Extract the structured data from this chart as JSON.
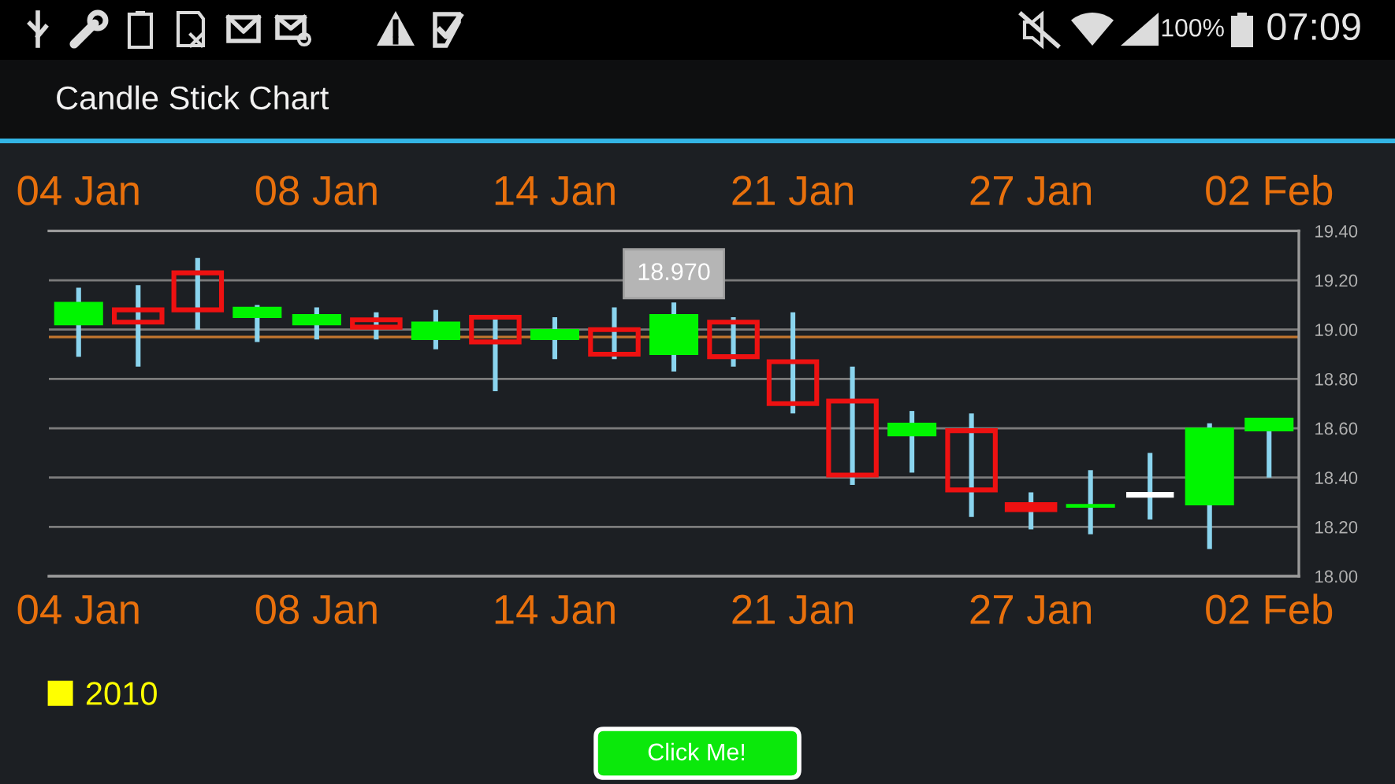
{
  "chart_data": {
    "type": "candlestick",
    "title": "Candle Stick Chart",
    "categories": [
      "04 Jan",
      null,
      null,
      null,
      "08 Jan",
      null,
      null,
      null,
      "14 Jan",
      null,
      null,
      null,
      "21 Jan",
      null,
      null,
      null,
      "27 Jan",
      null,
      null,
      null,
      "02 Feb"
    ],
    "series": [
      {
        "name": "2010",
        "color": "#ffff00",
        "colors": [
          "#00f500",
          "#ee1111",
          "#ee1111",
          "#00f500",
          "#00f500",
          "#ee1111",
          "#00f500",
          "#ee1111",
          "#00f500",
          "#ee1111",
          "#00f500",
          "#ee1111",
          "#ee1111",
          "#ee1111",
          "#00f500",
          "#ee1111",
          "#ee1111",
          "#00f500",
          "#ffffff",
          "#00f500",
          "#00f500"
        ],
        "ohlc": [
          [
            19.02,
            19.17,
            18.89,
            19.11
          ],
          [
            19.08,
            19.18,
            18.85,
            19.03
          ],
          [
            19.23,
            19.29,
            19.0,
            19.08
          ],
          [
            19.05,
            19.1,
            18.95,
            19.09
          ],
          [
            19.02,
            19.09,
            18.96,
            19.06
          ],
          [
            19.04,
            19.07,
            18.96,
            19.01
          ],
          [
            18.96,
            19.08,
            18.92,
            19.03
          ],
          [
            19.05,
            19.05,
            18.75,
            18.95
          ],
          [
            18.96,
            19.05,
            18.88,
            19.0
          ],
          [
            19.0,
            19.09,
            18.88,
            18.9
          ],
          [
            18.9,
            19.11,
            18.83,
            19.06
          ],
          [
            19.03,
            19.05,
            18.85,
            18.89
          ],
          [
            18.87,
            19.07,
            18.66,
            18.7
          ],
          [
            18.71,
            18.85,
            18.37,
            18.41
          ],
          [
            18.57,
            18.67,
            18.42,
            18.62
          ],
          [
            18.59,
            18.66,
            18.24,
            18.35
          ],
          [
            18.29,
            18.34,
            18.19,
            18.27
          ],
          [
            18.28,
            18.43,
            18.17,
            18.29
          ],
          [
            18.33,
            18.5,
            18.23,
            18.33
          ],
          [
            18.29,
            18.62,
            18.11,
            18.6
          ],
          [
            18.59,
            18.64,
            18.4,
            18.64
          ]
        ]
      }
    ],
    "ylim": [
      18,
      19.4
    ],
    "yticks": [
      {
        "value": 18,
        "label": "18.00"
      },
      {
        "value": 18.2,
        "label": "18.20"
      },
      {
        "value": 18.4,
        "label": "18.40"
      },
      {
        "value": 18.6,
        "label": "18.60"
      },
      {
        "value": 18.8,
        "label": "18.80"
      },
      {
        "value": 19,
        "label": "19.00"
      },
      {
        "value": 19.2,
        "label": "19.20"
      },
      {
        "value": 19.4,
        "label": "19.40"
      }
    ],
    "grid": "y",
    "legend": "bottom left",
    "ref_lines": [
      {
        "axis": "y",
        "value": 18.97,
        "color": "#c0752f"
      }
    ],
    "annotations": [
      "100%",
      "07:09",
      {
        "text": "18.970",
        "y": 18.97
      },
      "Click Me!"
    ]
  }
}
